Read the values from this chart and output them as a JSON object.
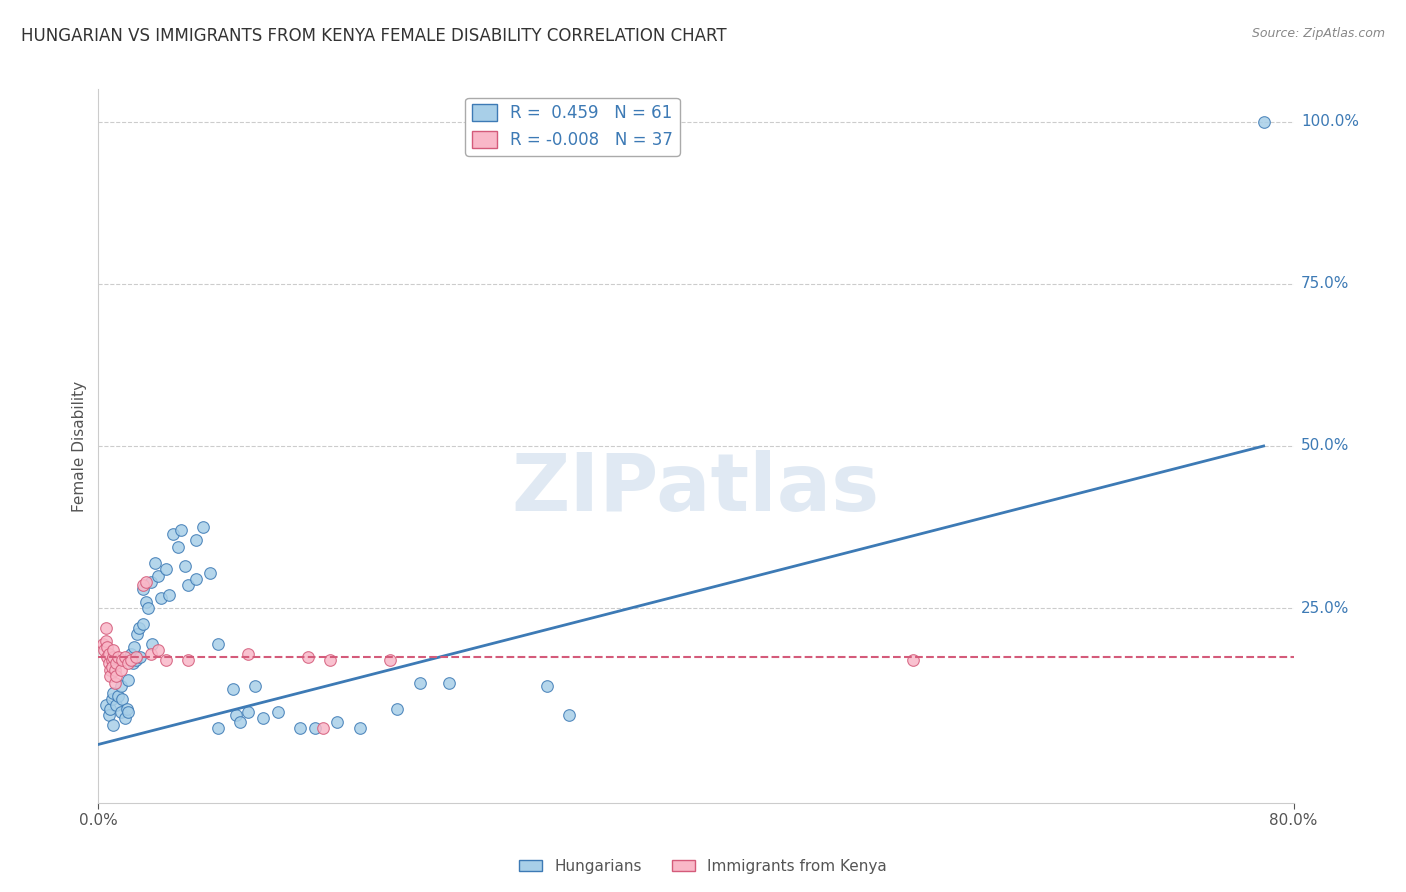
{
  "title": "HUNGARIAN VS IMMIGRANTS FROM KENYA FEMALE DISABILITY CORRELATION CHART",
  "source": "Source: ZipAtlas.com",
  "ylabel": "Female Disability",
  "xlabel": "",
  "xlim": [
    0.0,
    0.8
  ],
  "ylim": [
    -0.05,
    1.05
  ],
  "xtick_labels": [
    "0.0%",
    "80.0%"
  ],
  "ytick_labels_right": [
    "100.0%",
    "75.0%",
    "50.0%",
    "25.0%"
  ],
  "ytick_vals_right": [
    1.0,
    0.75,
    0.5,
    0.25
  ],
  "legend_blue_r": "0.459",
  "legend_blue_n": "61",
  "legend_pink_r": "-0.008",
  "legend_pink_n": "37",
  "blue_color": "#a8cfe8",
  "blue_line_color": "#3d7ab5",
  "pink_color": "#f9b8c8",
  "pink_line_color": "#d45b7a",
  "background_color": "#ffffff",
  "watermark": "ZIPatlas",
  "blue_scatter": [
    [
      0.005,
      0.1
    ],
    [
      0.007,
      0.085
    ],
    [
      0.008,
      0.095
    ],
    [
      0.009,
      0.11
    ],
    [
      0.01,
      0.12
    ],
    [
      0.01,
      0.07
    ],
    [
      0.012,
      0.1
    ],
    [
      0.013,
      0.115
    ],
    [
      0.015,
      0.13
    ],
    [
      0.015,
      0.09
    ],
    [
      0.016,
      0.11
    ],
    [
      0.018,
      0.08
    ],
    [
      0.019,
      0.095
    ],
    [
      0.02,
      0.14
    ],
    [
      0.02,
      0.09
    ],
    [
      0.022,
      0.18
    ],
    [
      0.023,
      0.165
    ],
    [
      0.024,
      0.19
    ],
    [
      0.025,
      0.17
    ],
    [
      0.026,
      0.21
    ],
    [
      0.027,
      0.22
    ],
    [
      0.028,
      0.175
    ],
    [
      0.03,
      0.28
    ],
    [
      0.03,
      0.225
    ],
    [
      0.032,
      0.26
    ],
    [
      0.033,
      0.25
    ],
    [
      0.035,
      0.29
    ],
    [
      0.036,
      0.195
    ],
    [
      0.038,
      0.32
    ],
    [
      0.04,
      0.3
    ],
    [
      0.042,
      0.265
    ],
    [
      0.045,
      0.31
    ],
    [
      0.047,
      0.27
    ],
    [
      0.05,
      0.365
    ],
    [
      0.053,
      0.345
    ],
    [
      0.055,
      0.37
    ],
    [
      0.058,
      0.315
    ],
    [
      0.06,
      0.285
    ],
    [
      0.065,
      0.355
    ],
    [
      0.065,
      0.295
    ],
    [
      0.07,
      0.375
    ],
    [
      0.075,
      0.305
    ],
    [
      0.08,
      0.195
    ],
    [
      0.08,
      0.065
    ],
    [
      0.09,
      0.125
    ],
    [
      0.092,
      0.085
    ],
    [
      0.095,
      0.075
    ],
    [
      0.1,
      0.09
    ],
    [
      0.105,
      0.13
    ],
    [
      0.11,
      0.08
    ],
    [
      0.12,
      0.09
    ],
    [
      0.135,
      0.065
    ],
    [
      0.145,
      0.065
    ],
    [
      0.16,
      0.075
    ],
    [
      0.175,
      0.065
    ],
    [
      0.2,
      0.095
    ],
    [
      0.215,
      0.135
    ],
    [
      0.235,
      0.135
    ],
    [
      0.3,
      0.13
    ],
    [
      0.315,
      0.085
    ],
    [
      0.78,
      1.0
    ]
  ],
  "pink_scatter": [
    [
      0.003,
      0.195
    ],
    [
      0.004,
      0.185
    ],
    [
      0.005,
      0.2
    ],
    [
      0.005,
      0.22
    ],
    [
      0.006,
      0.175
    ],
    [
      0.006,
      0.19
    ],
    [
      0.007,
      0.165
    ],
    [
      0.007,
      0.18
    ],
    [
      0.008,
      0.155
    ],
    [
      0.008,
      0.145
    ],
    [
      0.009,
      0.17
    ],
    [
      0.009,
      0.16
    ],
    [
      0.01,
      0.175
    ],
    [
      0.01,
      0.185
    ],
    [
      0.011,
      0.155
    ],
    [
      0.011,
      0.135
    ],
    [
      0.012,
      0.165
    ],
    [
      0.012,
      0.145
    ],
    [
      0.013,
      0.175
    ],
    [
      0.015,
      0.155
    ],
    [
      0.016,
      0.17
    ],
    [
      0.018,
      0.175
    ],
    [
      0.02,
      0.165
    ],
    [
      0.022,
      0.17
    ],
    [
      0.025,
      0.175
    ],
    [
      0.03,
      0.285
    ],
    [
      0.032,
      0.29
    ],
    [
      0.035,
      0.18
    ],
    [
      0.04,
      0.185
    ],
    [
      0.045,
      0.17
    ],
    [
      0.06,
      0.17
    ],
    [
      0.1,
      0.18
    ],
    [
      0.14,
      0.175
    ],
    [
      0.15,
      0.065
    ],
    [
      0.155,
      0.17
    ],
    [
      0.195,
      0.17
    ],
    [
      0.545,
      0.17
    ]
  ],
  "blue_line_x": [
    0.0,
    0.78
  ],
  "blue_line_y": [
    0.04,
    0.5
  ],
  "pink_line_x": [
    0.0,
    0.8
  ],
  "pink_line_y": [
    0.175,
    0.175
  ],
  "grid_color": "#cccccc",
  "grid_linestyle": "--",
  "title_fontsize": 12,
  "axis_fontsize": 11
}
